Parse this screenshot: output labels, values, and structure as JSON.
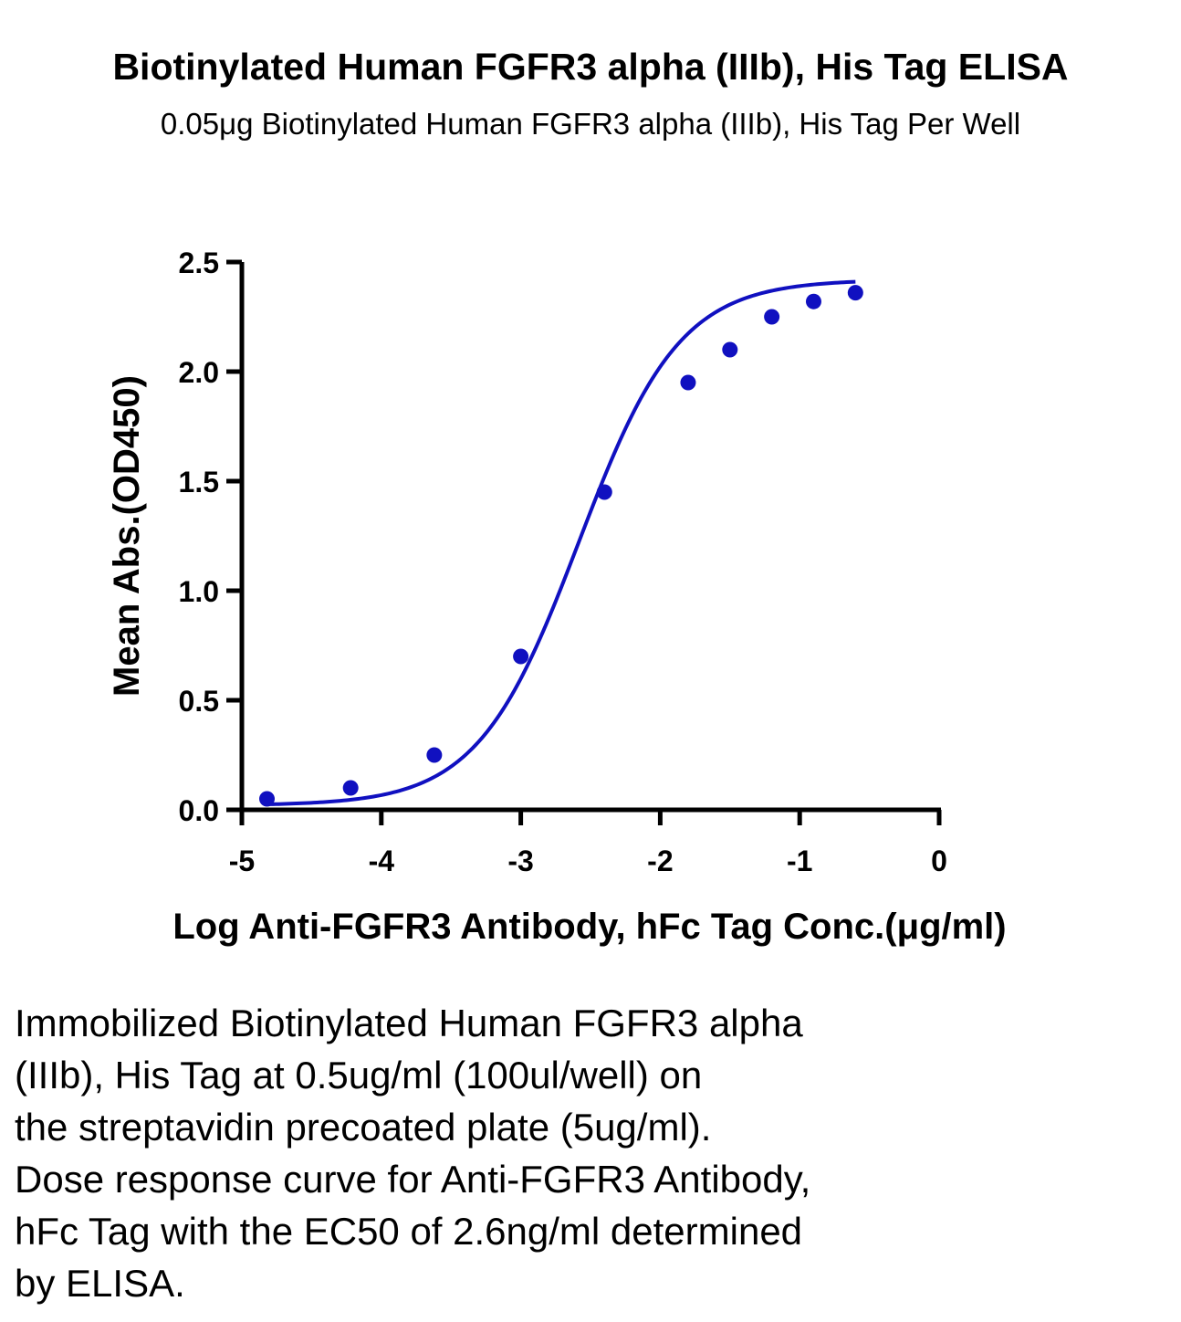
{
  "chart_data": {
    "type": "scatter",
    "title": "Biotinylated Human FGFR3 alpha (IIIb), His Tag ELISA",
    "subtitle": "0.05μg Biotinylated Human FGFR3 alpha (IIIb), His Tag Per Well",
    "xlabel": "Log Anti-FGFR3 Antibody, hFc  Tag Conc.(μg/ml)",
    "ylabel": "Mean Abs.(OD450)",
    "xlim": [
      -5,
      0
    ],
    "ylim": [
      0,
      2.5
    ],
    "x_ticks": [
      -5,
      -4,
      -3,
      -2,
      -1,
      0
    ],
    "x_tick_labels": [
      "-5",
      "-4",
      "-3",
      "-2",
      "-1",
      "0"
    ],
    "y_ticks": [
      0,
      0.5,
      1.0,
      1.5,
      2.0,
      2.5
    ],
    "y_tick_labels": [
      "0.0",
      "0.5",
      "1.0",
      "1.5",
      "2.0",
      "2.5"
    ],
    "grid": false,
    "series": [
      {
        "color": "#1010c0",
        "x": [
          -4.82,
          -4.22,
          -3.62,
          -3.0,
          -2.4,
          -1.8,
          -1.5,
          -1.2,
          -0.9,
          -0.6
        ],
        "y": [
          0.05,
          0.1,
          0.25,
          0.7,
          1.45,
          1.95,
          2.1,
          2.25,
          2.32,
          2.36
        ]
      }
    ],
    "fit_curve": {
      "model": "4PL",
      "bottom": 0.02,
      "top": 2.42,
      "logEC50": -2.585,
      "hill": 1.2,
      "x_range": [
        -4.82,
        -0.6
      ]
    }
  },
  "caption": "Immobilized Biotinylated Human FGFR3 alpha\n(IIIb), His Tag at 0.5ug/ml (100ul/well) on\nthe streptavidin precoated plate (5ug/ml).\nDose response curve for Anti-FGFR3 Antibody,\nhFc Tag with the EC50 of 2.6ng/ml determined\nby ELISA."
}
